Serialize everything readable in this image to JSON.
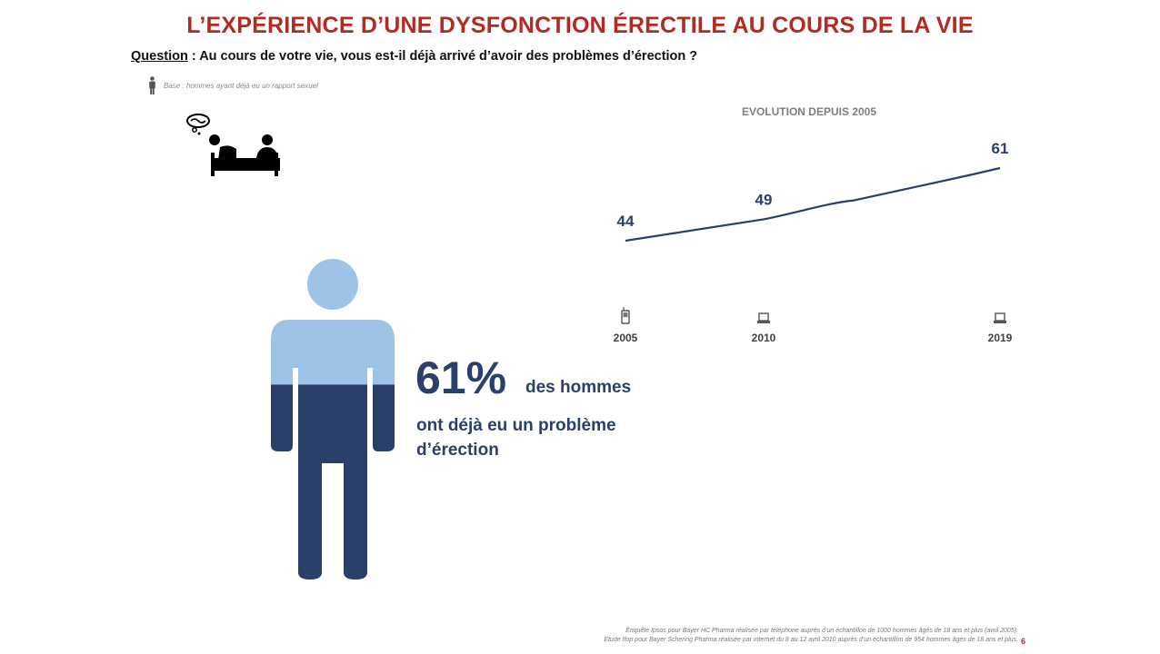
{
  "slide": {
    "title": "L’EXPÉRIENCE D’UNE DYSFONCTION ÉRECTILE AU COURS DE LA VIE",
    "question_label": "Question",
    "question_text": " : Au cours de votre vie, vous est-il déjà arrivé d’avoir des problèmes d’érection ?",
    "base_text": "Base : hommes ayant déjà eu un rapport sexuel",
    "headline_value": "61%",
    "headline_suffix": "des hommes",
    "headline_caption": "ont déjà eu un problème d’érection",
    "footnote_line1": "Enquête Ipsos pour Bayer HC Pharma réalisée par téléphone auprès d’un échantillon de 1000 hommes âgés de 18 ans et plus (avril 2005).",
    "footnote_line2": "Etude Ifop pour Bayer Schering Pharma réalisée par internet du 8 au 12 avril 2010 auprès d’un échantillon de 954 hommes âgés de 18 ans et plus.",
    "page_number": "6",
    "person_fill_fraction": 0.61,
    "colors": {
      "title_red": "#b22a22",
      "navy": "#2b3f6b",
      "light_blue": "#9dc3e6",
      "dark_blue": "#2b3f6b",
      "line": "#2b3f6b",
      "gray_text": "#7f7f7f"
    },
    "icons": {
      "base": "person-icon",
      "bed": "couple-in-bed-worried-icon",
      "mode_2005": "mobile-phone-icon",
      "mode_2010": "laptop-icon",
      "mode_2019": "laptop-icon"
    }
  },
  "chart_data": {
    "type": "line",
    "title": "EVOLUTION  DEPUIS 2005",
    "x": [
      "2005",
      "2010",
      "2019"
    ],
    "series": [
      {
        "values": [
          44,
          49,
          61
        ]
      }
    ],
    "data_labels": [
      "44",
      "49",
      "61"
    ],
    "ylim": [
      30,
      70
    ],
    "grid": false,
    "legend": "none"
  }
}
